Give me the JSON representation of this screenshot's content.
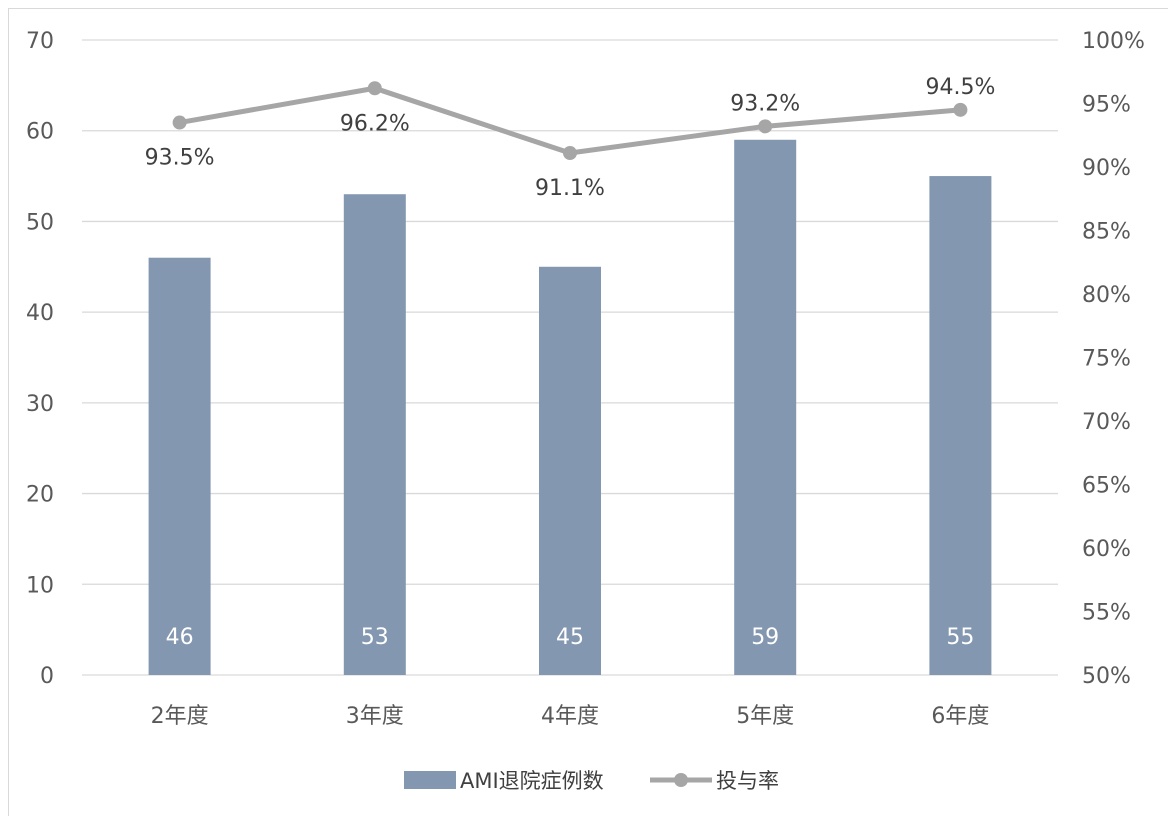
{
  "chart_data": {
    "type": "bar",
    "categories": [
      "2年度",
      "3年度",
      "4年度",
      "5年度",
      "6年度"
    ],
    "series": [
      {
        "name": "AMI退院症例数",
        "type": "bar",
        "axis": "left",
        "values": [
          46,
          53,
          45,
          59,
          55
        ],
        "color": "#8497b0"
      },
      {
        "name": "投与率",
        "type": "line",
        "axis": "right",
        "values": [
          93.5,
          96.2,
          91.1,
          93.2,
          94.5
        ],
        "labels": [
          "93.5%",
          "96.2%",
          "91.1%",
          "93.2%",
          "94.5%"
        ],
        "color": "#a6a6a6"
      }
    ],
    "y_left": {
      "min": 0,
      "max": 70,
      "ticks": [
        "0",
        "10",
        "20",
        "30",
        "40",
        "50",
        "60",
        "70"
      ]
    },
    "y_right": {
      "min": 50,
      "max": 100,
      "ticks": [
        "50%",
        "55%",
        "60%",
        "65%",
        "70%",
        "75%",
        "80%",
        "85%",
        "90%",
        "95%",
        "100%"
      ]
    },
    "grid": true,
    "legend": "bottom"
  }
}
